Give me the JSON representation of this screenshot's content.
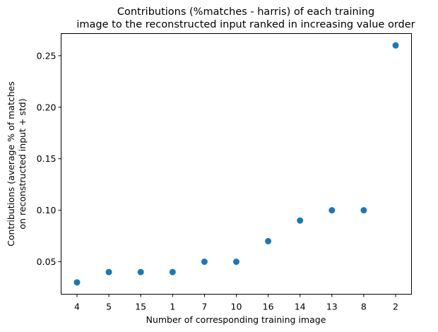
{
  "chart_data": {
    "type": "scatter",
    "title_lines": [
      "Contributions (%matches - harris) of each training",
      "image to the reconstructed input ranked in increasing value order"
    ],
    "xlabel": "Number of corresponding training image",
    "ylabel_lines": [
      "Contributions (average % of matches",
      "on reconstructed input + std)"
    ],
    "categories": [
      "4",
      "5",
      "15",
      "1",
      "7",
      "10",
      "16",
      "14",
      "13",
      "8",
      "2"
    ],
    "values": [
      0.03,
      0.04,
      0.04,
      0.04,
      0.05,
      0.05,
      0.07,
      0.09,
      0.1,
      0.1,
      0.26
    ],
    "ylim": [
      0.0185,
      0.2715
    ],
    "yticks": [
      0.05,
      0.1,
      0.15,
      0.2,
      0.25
    ],
    "ytick_labels": [
      "0.05",
      "0.10",
      "0.15",
      "0.20",
      "0.25"
    ],
    "grid": false,
    "marker_color": "#1f77b4"
  }
}
